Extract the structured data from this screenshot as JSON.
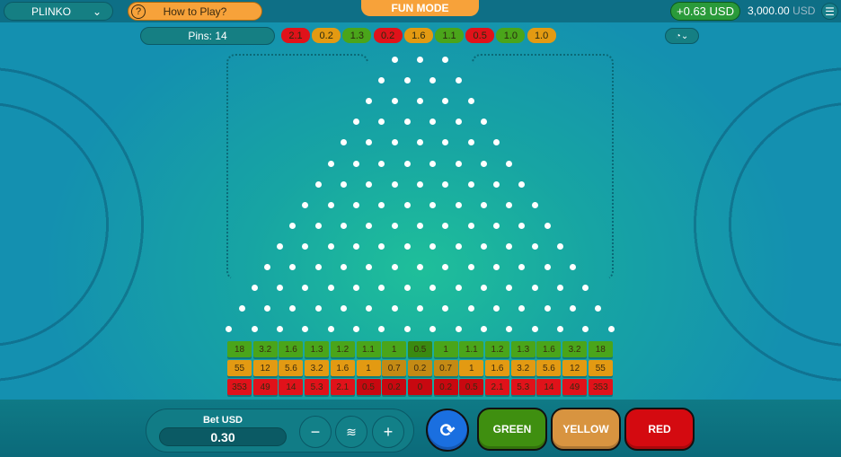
{
  "header": {
    "game": "PLINKO",
    "how_to_play": "How to Play?",
    "mode": "FUN MODE",
    "last_win": "+0.63 USD",
    "balance": "3,000.00",
    "currency": "USD"
  },
  "pins_label": "Pins: 14",
  "pins": 14,
  "history": [
    {
      "v": "2.1",
      "c": "red"
    },
    {
      "v": "0.2",
      "c": "yellow"
    },
    {
      "v": "1.3",
      "c": "green"
    },
    {
      "v": "0.2",
      "c": "red"
    },
    {
      "v": "1.6",
      "c": "yellow"
    },
    {
      "v": "1.1",
      "c": "green"
    },
    {
      "v": "0.5",
      "c": "red"
    },
    {
      "v": "1.0",
      "c": "green"
    },
    {
      "v": "1.0",
      "c": "yellow"
    }
  ],
  "multipliers": {
    "green": [
      "18",
      "3.2",
      "1.6",
      "1.3",
      "1.2",
      "1.1",
      "1",
      "0.5",
      "1",
      "1.1",
      "1.2",
      "1.3",
      "1.6",
      "3.2",
      "18"
    ],
    "yellow": [
      "55",
      "12",
      "5.6",
      "3.2",
      "1.6",
      "1",
      "0.7",
      "0.2",
      "0.7",
      "1",
      "1.6",
      "3.2",
      "5.6",
      "12",
      "55"
    ],
    "red": [
      "353",
      "49",
      "14",
      "5.3",
      "2.1",
      "0.5",
      "0.2",
      "0",
      "0.2",
      "0.5",
      "2.1",
      "5.3",
      "14",
      "49",
      "353"
    ]
  },
  "colors": {
    "green": "#4aa51a",
    "yellow": "#e39a12",
    "red": "#e0121a"
  },
  "bet": {
    "label": "Bet USD",
    "value": "0.30"
  },
  "buttons": {
    "minus": "−",
    "plus": "+",
    "green": "GREEN",
    "yellow": "YELLOW",
    "red": "RED"
  }
}
